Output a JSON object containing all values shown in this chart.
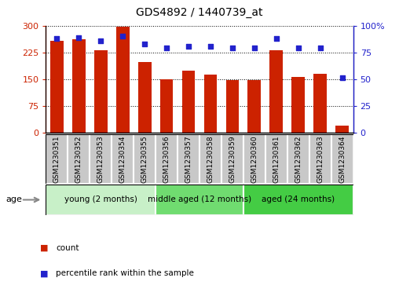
{
  "title": "GDS4892 / 1440739_at",
  "samples": [
    "GSM1230351",
    "GSM1230352",
    "GSM1230353",
    "GSM1230354",
    "GSM1230355",
    "GSM1230356",
    "GSM1230357",
    "GSM1230358",
    "GSM1230359",
    "GSM1230360",
    "GSM1230361",
    "GSM1230362",
    "GSM1230363",
    "GSM1230364"
  ],
  "counts": [
    258,
    262,
    230,
    297,
    198,
    150,
    174,
    162,
    147,
    148,
    230,
    157,
    165,
    20
  ],
  "percentiles": [
    88,
    89,
    86,
    90,
    83,
    79,
    81,
    81,
    79,
    79,
    88,
    79,
    79,
    51
  ],
  "bar_color": "#CC2200",
  "dot_color": "#2222CC",
  "ylim_left": [
    0,
    300
  ],
  "ylim_right": [
    0,
    100
  ],
  "yticks_left": [
    0,
    75,
    150,
    225,
    300
  ],
  "yticks_right": [
    0,
    25,
    50,
    75,
    100
  ],
  "ytick_labels_left": [
    "0",
    "75",
    "150",
    "225",
    "300"
  ],
  "ytick_labels_right": [
    "0",
    "25",
    "50",
    "75",
    "100%"
  ],
  "groups": [
    {
      "label": "young (2 months)",
      "start": 0,
      "end": 5,
      "color": "#C8F0C8"
    },
    {
      "label": "middle aged (12 months)",
      "start": 5,
      "end": 9,
      "color": "#70DC70"
    },
    {
      "label": "aged (24 months)",
      "start": 9,
      "end": 14,
      "color": "#44CC44"
    }
  ],
  "legend_items": [
    {
      "label": "count",
      "color": "#CC2200"
    },
    {
      "label": "percentile rank within the sample",
      "color": "#2222CC"
    }
  ],
  "age_label": "age",
  "tick_bg_color": "#C8C8C8",
  "tick_border_color": "#AAAAAA"
}
